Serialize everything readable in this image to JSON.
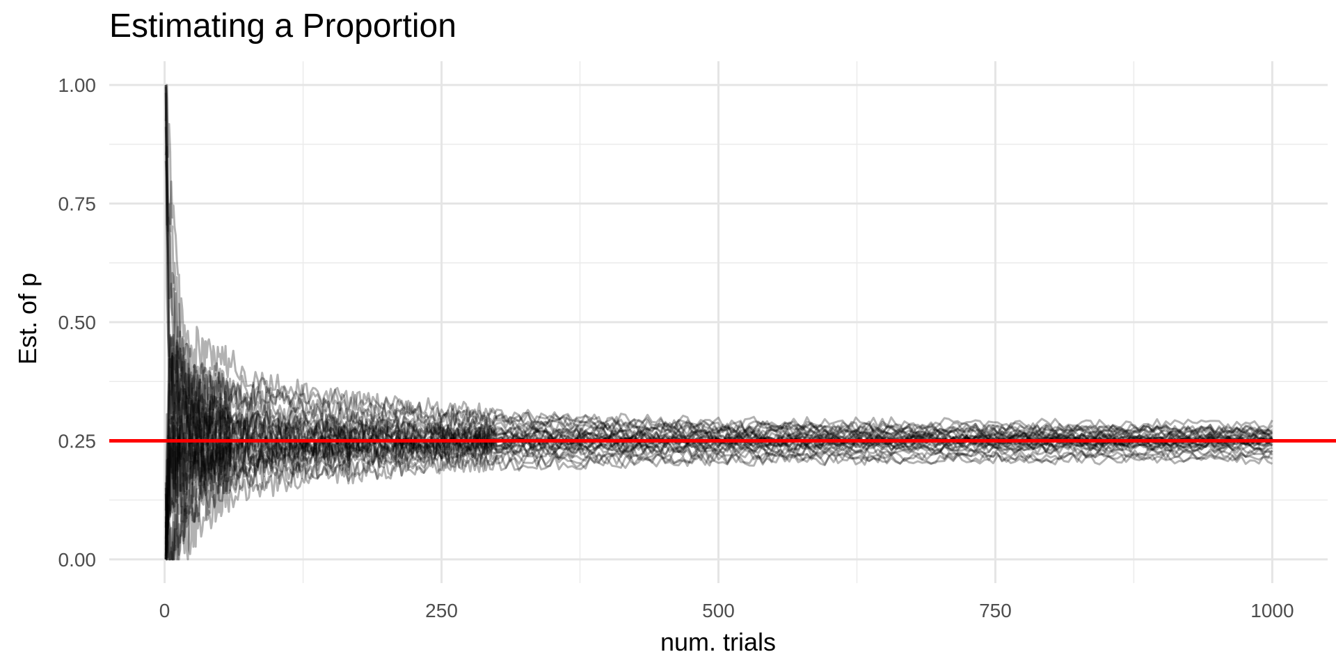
{
  "chart_data": {
    "type": "line",
    "title": "Estimating a Proportion",
    "xlabel": "num. trials",
    "ylabel": "Est. of p",
    "xlim": [
      -50,
      1050
    ],
    "ylim": [
      -0.05,
      1.05
    ],
    "x_ticks": [
      0,
      250,
      500,
      750,
      1000
    ],
    "x_tick_labels": [
      "0",
      "250",
      "500",
      "750",
      "1000"
    ],
    "x_minor_ticks": [
      125,
      375,
      625,
      875
    ],
    "y_ticks": [
      0,
      0.25,
      0.5,
      0.75,
      1.0
    ],
    "y_tick_labels": [
      "0.00",
      "0.25",
      "0.50",
      "0.75",
      "1.00"
    ],
    "y_minor_ticks": [
      0.125,
      0.375,
      0.625,
      0.875
    ],
    "grid": true,
    "reference_line": {
      "y": 0.25,
      "color": "#ff0000"
    },
    "series_color": "#000000",
    "series_opacity": 0.3,
    "n_trials": 1000,
    "series": [
      {
        "values_at": {
          "1": 1.0,
          "5": 0.6,
          "20": 0.35,
          "50": 0.3,
          "100": 0.27,
          "250": 0.26,
          "500": 0.25,
          "1000": 0.25
        }
      },
      {
        "values_at": {
          "1": 0.0,
          "5": 0.4,
          "20": 0.3,
          "50": 0.28,
          "100": 0.29,
          "250": 0.27,
          "500": 0.26,
          "1000": 0.255
        }
      },
      {
        "values_at": {
          "1": 0.0,
          "5": 0.0,
          "20": 0.05,
          "50": 0.16,
          "100": 0.2,
          "250": 0.23,
          "500": 0.24,
          "1000": 0.245
        }
      },
      {
        "values_at": {
          "1": 1.0,
          "5": 0.8,
          "20": 0.45,
          "50": 0.42,
          "100": 0.37,
          "250": 0.31,
          "500": 0.28,
          "1000": 0.27
        }
      },
      {
        "values_at": {
          "1": 0.0,
          "5": 0.2,
          "20": 0.2,
          "50": 0.22,
          "100": 0.23,
          "250": 0.24,
          "500": 0.25,
          "1000": 0.25
        }
      },
      {
        "values_at": {
          "1": 0.0,
          "5": 0.2,
          "20": 0.25,
          "50": 0.18,
          "100": 0.17,
          "250": 0.2,
          "500": 0.21,
          "1000": 0.215
        }
      },
      {
        "values_at": {
          "1": 1.0,
          "5": 0.4,
          "20": 0.4,
          "50": 0.35,
          "100": 0.33,
          "250": 0.3,
          "500": 0.29,
          "1000": 0.285
        }
      },
      {
        "values_at": {
          "1": 0.0,
          "5": 0.2,
          "20": 0.15,
          "50": 0.22,
          "100": 0.24,
          "250": 0.25,
          "500": 0.24,
          "1000": 0.24
        }
      },
      {
        "values_at": {
          "1": 0.0,
          "5": 0.4,
          "20": 0.3,
          "50": 0.26,
          "100": 0.25,
          "250": 0.26,
          "500": 0.265,
          "1000": 0.26
        }
      },
      {
        "values_at": {
          "1": 1.0,
          "5": 0.6,
          "20": 0.35,
          "50": 0.38,
          "100": 0.35,
          "250": 0.32,
          "500": 0.27,
          "1000": 0.265
        }
      },
      {
        "values_at": {
          "1": 0.0,
          "5": 0.0,
          "20": 0.1,
          "50": 0.2,
          "100": 0.21,
          "250": 0.22,
          "500": 0.22,
          "1000": 0.225
        }
      },
      {
        "values_at": {
          "1": 0.0,
          "5": 0.2,
          "20": 0.2,
          "50": 0.24,
          "100": 0.26,
          "250": 0.25,
          "500": 0.25,
          "1000": 0.25
        }
      },
      {
        "values_at": {
          "1": 1.0,
          "5": 0.4,
          "20": 0.3,
          "50": 0.3,
          "100": 0.28,
          "250": 0.27,
          "500": 0.26,
          "1000": 0.26
        }
      },
      {
        "values_at": {
          "1": 0.0,
          "5": 0.2,
          "20": 0.25,
          "50": 0.2,
          "100": 0.19,
          "250": 0.21,
          "500": 0.215,
          "1000": 0.22
        }
      },
      {
        "values_at": {
          "1": 0.0,
          "5": 0.4,
          "20": 0.35,
          "50": 0.32,
          "100": 0.3,
          "250": 0.28,
          "500": 0.27,
          "1000": 0.27
        }
      },
      {
        "values_at": {
          "1": 1.0,
          "5": 0.2,
          "20": 0.2,
          "50": 0.22,
          "100": 0.23,
          "250": 0.23,
          "500": 0.235,
          "1000": 0.235
        }
      },
      {
        "values_at": {
          "1": 0.0,
          "5": 0.0,
          "20": 0.15,
          "50": 0.18,
          "100": 0.22,
          "250": 0.24,
          "500": 0.25,
          "1000": 0.245
        }
      },
      {
        "values_at": {
          "1": 0.0,
          "5": 0.2,
          "20": 0.3,
          "50": 0.28,
          "100": 0.26,
          "250": 0.25,
          "500": 0.255,
          "1000": 0.255
        }
      },
      {
        "values_at": {
          "1": 1.0,
          "5": 0.6,
          "20": 0.4,
          "50": 0.34,
          "100": 0.32,
          "250": 0.29,
          "500": 0.28,
          "1000": 0.275
        }
      },
      {
        "values_at": {
          "1": 0.0,
          "5": 0.2,
          "20": 0.2,
          "50": 0.23,
          "100": 0.24,
          "250": 0.24,
          "500": 0.24,
          "1000": 0.24
        }
      },
      {
        "values_at": {
          "1": 0.0,
          "5": 0.0,
          "20": 0.05,
          "50": 0.12,
          "100": 0.16,
          "250": 0.2,
          "500": 0.21,
          "1000": 0.21
        }
      },
      {
        "values_at": {
          "1": 1.0,
          "5": 0.4,
          "20": 0.25,
          "50": 0.26,
          "100": 0.27,
          "250": 0.26,
          "500": 0.26,
          "1000": 0.25
        }
      },
      {
        "values_at": {
          "1": 0.0,
          "5": 0.4,
          "20": 0.3,
          "50": 0.3,
          "100": 0.29,
          "250": 0.28,
          "500": 0.275,
          "1000": 0.27
        }
      },
      {
        "values_at": {
          "1": 0.0,
          "5": 0.2,
          "20": 0.15,
          "50": 0.2,
          "100": 0.22,
          "250": 0.23,
          "500": 0.23,
          "1000": 0.23
        }
      },
      {
        "values_at": {
          "1": 1.0,
          "5": 0.8,
          "20": 0.35,
          "50": 0.3,
          "100": 0.28,
          "250": 0.27,
          "500": 0.26,
          "1000": 0.26
        }
      },
      {
        "values_at": {
          "1": 0.0,
          "5": 0.2,
          "20": 0.25,
          "50": 0.25,
          "100": 0.24,
          "250": 0.245,
          "500": 0.25,
          "1000": 0.25
        }
      },
      {
        "values_at": {
          "1": 0.0,
          "5": 0.0,
          "20": 0.1,
          "50": 0.16,
          "100": 0.2,
          "250": 0.22,
          "500": 0.23,
          "1000": 0.24
        }
      },
      {
        "values_at": {
          "1": 1.0,
          "5": 0.4,
          "20": 0.35,
          "50": 0.36,
          "100": 0.33,
          "250": 0.3,
          "500": 0.28,
          "1000": 0.275
        }
      },
      {
        "values_at": {
          "1": 0.0,
          "5": 0.2,
          "20": 0.2,
          "50": 0.22,
          "100": 0.23,
          "250": 0.235,
          "500": 0.24,
          "1000": 0.245
        }
      },
      {
        "values_at": {
          "1": 0.0,
          "5": 0.4,
          "20": 0.3,
          "50": 0.27,
          "100": 0.26,
          "250": 0.26,
          "500": 0.255,
          "1000": 0.255
        }
      }
    ]
  }
}
